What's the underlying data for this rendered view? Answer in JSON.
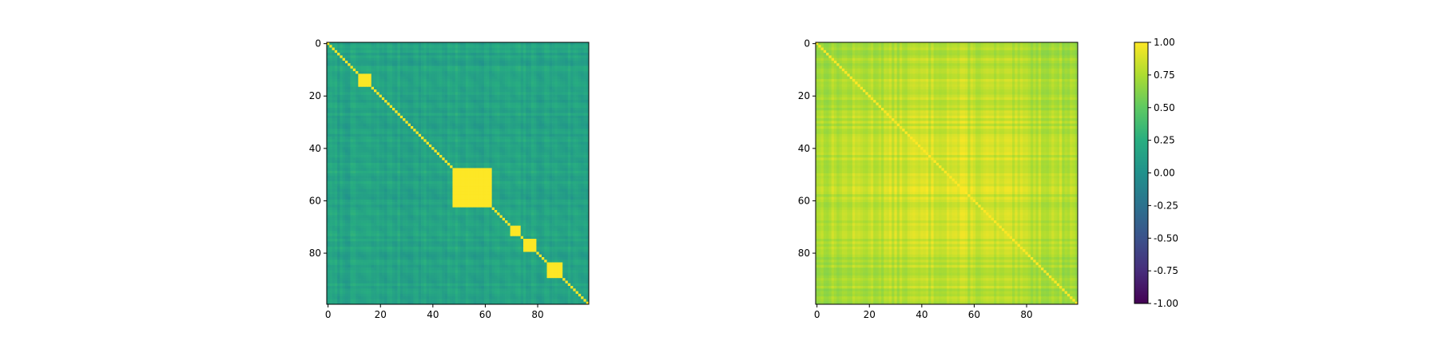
{
  "chart_data": [
    {
      "type": "heatmap",
      "title": "",
      "xlabel": "",
      "ylabel": "",
      "size": 100,
      "xlim": [
        0,
        99
      ],
      "ylim": [
        99,
        0
      ],
      "xticks": [
        0,
        20,
        40,
        60,
        80
      ],
      "yticks": [
        0,
        20,
        40,
        60,
        80
      ],
      "colormap": "viridis",
      "vmin": -1.0,
      "vmax": 1.0,
      "description_values": {
        "diagonal": 1.0,
        "background_range": [
          0.0,
          0.35
        ],
        "blocks": [
          {
            "range": [
              12,
              16
            ],
            "value": 1.0
          },
          {
            "range": [
              48,
              62
            ],
            "value": 1.0
          },
          {
            "range": [
              70,
              73
            ],
            "value": 1.0
          },
          {
            "range": [
              75,
              79
            ],
            "value": 1.0
          },
          {
            "range": [
              84,
              89
            ],
            "value": 1.0
          }
        ]
      }
    },
    {
      "type": "heatmap",
      "title": "",
      "xlabel": "",
      "ylabel": "",
      "size": 100,
      "xlim": [
        0,
        99
      ],
      "ylim": [
        99,
        0
      ],
      "xticks": [
        0,
        20,
        40,
        60,
        80
      ],
      "yticks": [
        0,
        20,
        40,
        60,
        80
      ],
      "colormap": "viridis",
      "vmin": -1.0,
      "vmax": 1.0,
      "description_values": {
        "diagonal": 1.0,
        "background_range": [
          0.35,
          1.0
        ]
      }
    }
  ],
  "colorbar": {
    "ticks": [
      "1.00",
      "0.75",
      "0.50",
      "0.25",
      "0.00",
      "-0.25",
      "-0.50",
      "-0.75",
      "-1.00"
    ],
    "vmin": -1.0,
    "vmax": 1.0
  },
  "colors": {
    "viridis_dark": "#440154",
    "viridis_mid": "#21918c",
    "viridis_bright": "#fde725"
  }
}
